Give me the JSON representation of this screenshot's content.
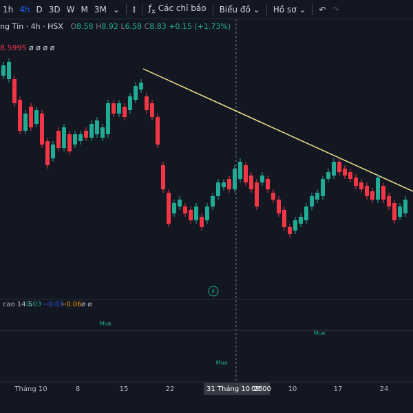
{
  "toolbar": {
    "intervals": [
      "1h",
      "4h",
      "D",
      "3D",
      "W",
      "M",
      "3M"
    ],
    "indicators": "Các chỉ báo",
    "chart": "Biểu đồ",
    "profile": "Hồ sơ"
  },
  "legend": {
    "symbol": "ng Tín · 4h · HSX",
    "o_label": "O",
    "open": "8.58",
    "h_label": "H",
    "high": "8.92",
    "l_label": "L",
    "low": "6.58",
    "c_label": "C",
    "close": "8.83",
    "change": "+0.15 (+1.73%)",
    "ma": "8.5995",
    "ma_extra": "ø ø ø ø"
  },
  "macd": {
    "label": "cao 14 5",
    "v1": "0.03",
    "v2": "−0.03",
    "v3": "−0.06",
    "extra": "ø ø",
    "signals": [
      "Mua",
      "Mua",
      "Mua"
    ]
  },
  "xaxis": {
    "labels": [
      "Tháng 10",
      "8",
      "15",
      "22",
      "10",
      "17",
      "24"
    ],
    "cursor_date": "31 Tháng 10 '25",
    "cursor_time": "09:00"
  },
  "chart": {
    "ylim": [
      8.0,
      10.0
    ],
    "open": [
      9.45,
      9.425,
      9.425,
      9.275,
      9.05,
      9.225,
      9.1,
      9.175,
      8.975,
      8.85,
      9.05,
      8.925,
      9.025,
      8.95,
      8.975,
      9.05,
      9.0,
      9.025,
      9.0,
      9.025,
      9.25,
      9.175,
      9.225,
      9.2,
      9.275,
      9.35,
      9.3,
      9.25,
      9.15,
      8.8,
      8.6,
      8.45,
      8.5,
      8.5,
      8.475,
      8.4,
      8.425,
      8.4,
      8.5,
      8.575,
      8.64,
      8.7,
      8.625,
      8.7,
      8.8,
      8.725,
      8.675,
      8.675,
      8.7,
      8.6,
      8.55,
      8.475,
      8.35,
      8.325,
      8.375,
      8.4,
      8.5,
      8.55,
      8.575,
      8.7,
      8.725,
      8.825,
      8.775,
      8.75,
      8.71,
      8.675,
      8.65,
      8.61,
      8.55,
      8.65,
      8.575,
      8.525,
      8.425,
      8.45
    ],
    "high": [
      9.55,
      9.575,
      9.45,
      9.3,
      9.2,
      9.25,
      9.225,
      9.2,
      9.0,
      8.975,
      9.075,
      9.1,
      9.05,
      9.05,
      9.05,
      9.075,
      9.125,
      9.15,
      9.1,
      9.275,
      9.275,
      9.275,
      9.25,
      9.325,
      9.4,
      9.425,
      9.325,
      9.275,
      9.175,
      8.825,
      8.625,
      8.55,
      8.575,
      8.525,
      8.5,
      8.525,
      8.45,
      8.525,
      8.6,
      8.7,
      8.7,
      8.725,
      8.8,
      8.85,
      8.825,
      8.75,
      8.7,
      8.75,
      8.725,
      8.625,
      8.575,
      8.5,
      8.375,
      8.425,
      8.45,
      8.525,
      8.6,
      8.625,
      8.725,
      8.775,
      8.85,
      8.85,
      8.8,
      8.775,
      8.735,
      8.7,
      8.675,
      8.635,
      8.735,
      8.675,
      8.6,
      8.55,
      8.525,
      8.575
    ],
    "low": [
      9.425,
      9.4,
      9.225,
      9.025,
      9.025,
      9.05,
      9.075,
      8.925,
      8.775,
      8.825,
      8.9,
      8.9,
      8.875,
      8.925,
      8.95,
      8.975,
      8.975,
      9.0,
      8.975,
      9.0,
      9.15,
      9.15,
      9.125,
      9.175,
      9.25,
      9.325,
      9.175,
      9.125,
      8.925,
      8.6,
      8.35,
      8.425,
      8.475,
      8.425,
      8.375,
      8.375,
      8.325,
      8.375,
      8.475,
      8.55,
      8.615,
      8.6,
      8.6,
      8.675,
      8.65,
      8.6,
      8.475,
      8.65,
      8.6,
      8.525,
      8.425,
      8.325,
      8.275,
      8.3,
      8.35,
      8.375,
      8.475,
      8.525,
      8.55,
      8.675,
      8.7,
      8.725,
      8.7,
      8.675,
      8.625,
      8.6,
      8.55,
      8.525,
      8.525,
      8.525,
      8.475,
      8.375,
      8.4,
      8.425
    ],
    "close": [
      9.525,
      9.55,
      9.25,
      9.05,
      9.175,
      9.075,
      9.2,
      8.95,
      8.8,
      8.95,
      8.925,
      9.075,
      8.9,
      9.025,
      9.025,
      9.0,
      9.1,
      9.125,
      9.075,
      9.25,
      9.175,
      9.25,
      9.15,
      9.3,
      9.375,
      9.4,
      9.2,
      9.15,
      8.95,
      8.625,
      8.375,
      8.525,
      8.55,
      8.45,
      8.4,
      8.5,
      8.35,
      8.5,
      8.575,
      8.675,
      8.675,
      8.625,
      8.775,
      8.825,
      8.675,
      8.625,
      8.5,
      8.725,
      8.625,
      8.55,
      8.45,
      8.35,
      8.3,
      8.4,
      8.425,
      8.5,
      8.575,
      8.6,
      8.7,
      8.75,
      8.825,
      8.75,
      8.725,
      8.7,
      8.65,
      8.625,
      8.575,
      8.55,
      8.71,
      8.55,
      8.5,
      8.4,
      8.5,
      8.55
    ]
  }
}
